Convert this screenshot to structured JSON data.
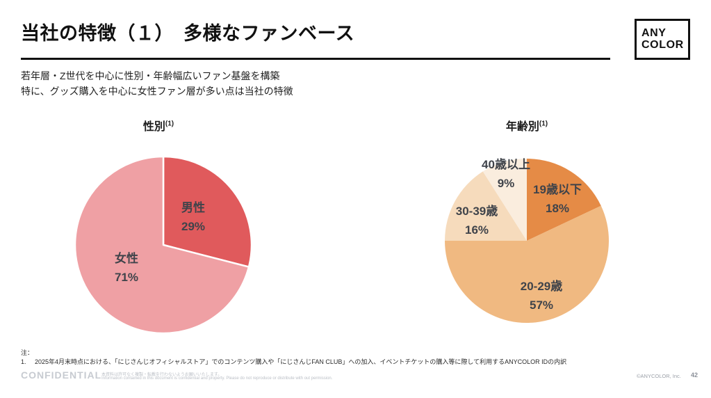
{
  "slide": {
    "title": "当社の特徴（１）　多様なファンベース",
    "logo": {
      "line1": "ANY",
      "line2": "COLOR"
    },
    "subtitle_line1": "若年層・Z世代を中心に性別・年齢幅広いファン基盤を構築",
    "subtitle_line2": "特に、グッズ購入を中心に女性ファン層が多い点は当社の特徴"
  },
  "chart_data": [
    {
      "type": "pie",
      "title": "性別",
      "title_note": "(1)",
      "start_angle_deg": 0,
      "direction": "clockwise",
      "legend_position": "inside",
      "slices": [
        {
          "label": "男性",
          "value": 29,
          "display": "29%",
          "color": "#E05A5C"
        },
        {
          "label": "女性",
          "value": 71,
          "display": "71%",
          "color": "#EFA0A4"
        }
      ]
    },
    {
      "type": "pie",
      "title": "年齢別",
      "title_note": "(1)",
      "start_angle_deg": 0,
      "direction": "clockwise",
      "legend_position": "inside",
      "slices": [
        {
          "label": "19歳以下",
          "value": 18,
          "display": "18%",
          "color": "#E58B46"
        },
        {
          "label": "20-29歳",
          "value": 57,
          "display": "57%",
          "color": "#F0B981"
        },
        {
          "label": "30-39歳",
          "value": 16,
          "display": "16%",
          "color": "#F6DBBC"
        },
        {
          "label": "40歳以上",
          "value": 9,
          "display": "9%",
          "color": "#FAEDDE"
        }
      ]
    }
  ],
  "notes": {
    "label": "注：",
    "item_number": "1.",
    "item_text": "2025年4月末時点における、「にじさんじオフィシャルストア」でのコンテンツ購入や「にじさんじFAN CLUB」への加入、イベントチケットの購入等に際して利用するANYCOLOR IDの内訳"
  },
  "footer": {
    "confidential": "CONFIDENTIAL",
    "disclaimer_jp": "本資料は許可なく複製・転載を行わないようお願いいたします。",
    "disclaimer_en": "Information contained in this document is confidential and property. Please do not reproduce or distribute with out permission.",
    "copyright": "©ANYCOLOR, Inc.",
    "page_number": "42"
  },
  "colors": {
    "title_text": "#111111",
    "label_text": "#3F434A",
    "male": "#E05A5C",
    "female": "#EFA0A4",
    "age_under19": "#E58B46",
    "age_20s": "#F0B981",
    "age_30s": "#F6DBBC",
    "age_40plus": "#FAEDDE",
    "confidential_gray": "#C7CBD1"
  }
}
